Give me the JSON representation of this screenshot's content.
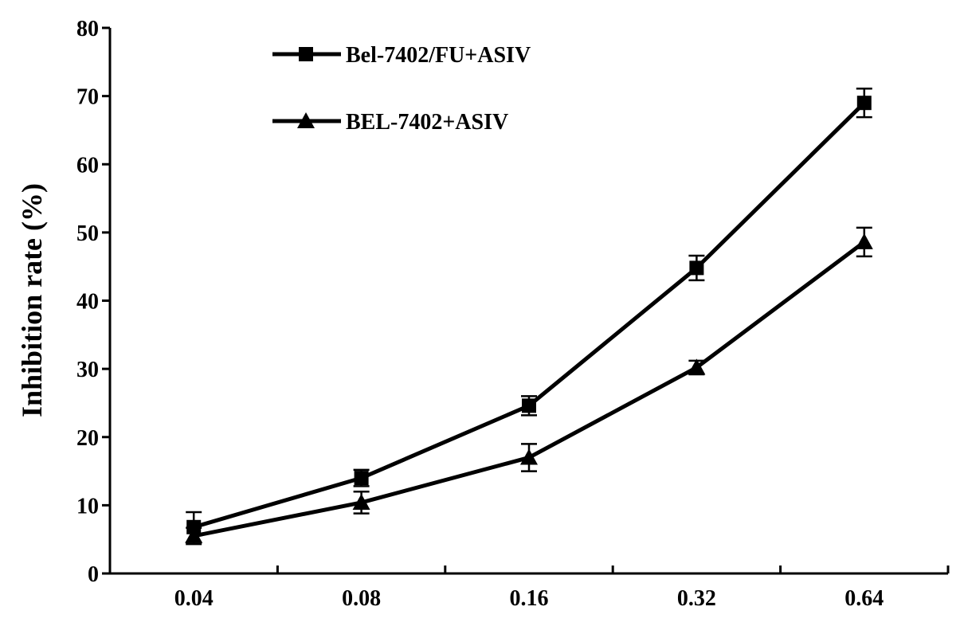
{
  "chart_data": {
    "type": "line",
    "title": "",
    "xlabel": "",
    "ylabel": "Inhibition rate (%)",
    "ylim": [
      0,
      80
    ],
    "yticks": [
      0,
      10,
      20,
      30,
      40,
      50,
      60,
      70,
      80
    ],
    "categories": [
      "0.04",
      "0.08",
      "0.16",
      "0.32",
      "0.64"
    ],
    "legend_position": "top-left",
    "grid": false,
    "series": [
      {
        "name": "Bel-7402/FU+ASIV",
        "marker": "square",
        "color": "#000000",
        "values": [
          6.8,
          14.0,
          24.6,
          44.8,
          69.0
        ],
        "errors": [
          2.2,
          1.2,
          1.4,
          1.8,
          2.1
        ]
      },
      {
        "name": "BEL-7402+ASIV",
        "marker": "triangle",
        "color": "#000000",
        "values": [
          5.5,
          10.4,
          17.0,
          30.2,
          48.6
        ],
        "errors": [
          1.2,
          1.6,
          2.0,
          1.0,
          2.1
        ]
      }
    ]
  }
}
